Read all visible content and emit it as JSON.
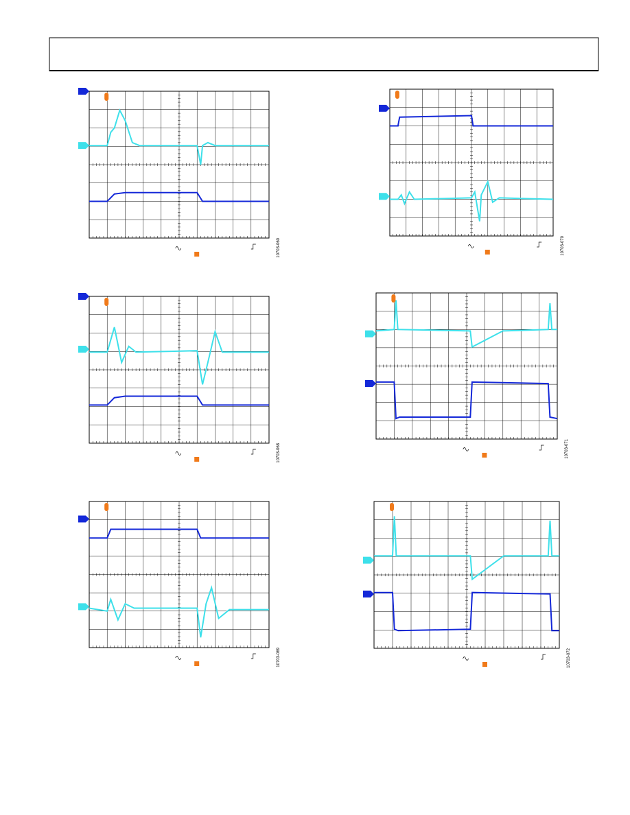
{
  "figures": [
    {
      "id": "10703-060"
    },
    {
      "id": "10703-070"
    },
    {
      "id": "10703-068"
    },
    {
      "id": "10703-071"
    },
    {
      "id": "10703-069"
    },
    {
      "id": "10703-072"
    }
  ]
}
